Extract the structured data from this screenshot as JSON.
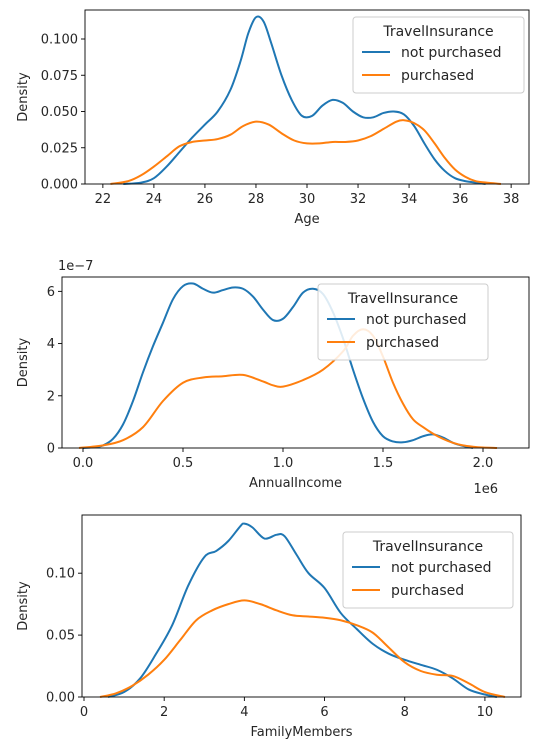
{
  "colors": {
    "not_purchased": "#1f77b4",
    "purchased": "#ff7f0e"
  },
  "chart_data": [
    {
      "type": "line",
      "title": "",
      "xlabel": "Age",
      "ylabel": "Density",
      "xlim": [
        21.3,
        38.7
      ],
      "ylim": [
        0,
        0.12
      ],
      "xticks": [
        22,
        24,
        26,
        28,
        30,
        32,
        34,
        36,
        38
      ],
      "xtick_labels": [
        "22",
        "24",
        "26",
        "28",
        "30",
        "32",
        "34",
        "36",
        "38"
      ],
      "yticks": [
        0,
        0.025,
        0.05,
        0.075,
        0.1
      ],
      "ytick_labels": [
        "0.000",
        "0.025",
        "0.050",
        "0.075",
        "0.100"
      ],
      "offset_label": "",
      "legend": {
        "title": "TravelInsurance",
        "placement": "top-right"
      },
      "series": [
        {
          "name": "not purchased",
          "color_key": "not_purchased",
          "x": [
            22.8,
            23.5,
            24.0,
            24.5,
            25.0,
            25.5,
            26.0,
            26.5,
            27.0,
            27.4,
            27.7,
            28.0,
            28.3,
            28.6,
            29.0,
            29.4,
            29.8,
            30.2,
            30.6,
            31.0,
            31.4,
            31.8,
            32.2,
            32.6,
            33.0,
            33.4,
            33.8,
            34.2,
            34.6,
            35.0,
            35.4,
            35.8,
            36.2,
            36.6,
            37.0
          ],
          "y": [
            0.0,
            0.001,
            0.004,
            0.012,
            0.022,
            0.032,
            0.041,
            0.05,
            0.065,
            0.085,
            0.104,
            0.115,
            0.112,
            0.097,
            0.075,
            0.058,
            0.047,
            0.047,
            0.054,
            0.058,
            0.056,
            0.05,
            0.046,
            0.046,
            0.049,
            0.05,
            0.048,
            0.04,
            0.028,
            0.017,
            0.009,
            0.004,
            0.002,
            0.001,
            0.0
          ]
        },
        {
          "name": "purchased",
          "color_key": "purchased",
          "x": [
            22.3,
            23.0,
            23.5,
            24.0,
            24.5,
            25.0,
            25.5,
            26.0,
            26.5,
            27.0,
            27.5,
            28.0,
            28.5,
            29.0,
            29.5,
            30.0,
            30.5,
            31.0,
            31.5,
            32.0,
            32.5,
            33.0,
            33.5,
            33.8,
            34.2,
            34.6,
            35.0,
            35.4,
            35.8,
            36.2,
            36.6,
            37.0,
            37.6
          ],
          "y": [
            0.0,
            0.002,
            0.006,
            0.012,
            0.019,
            0.026,
            0.029,
            0.03,
            0.031,
            0.034,
            0.04,
            0.043,
            0.041,
            0.035,
            0.03,
            0.028,
            0.028,
            0.029,
            0.029,
            0.03,
            0.033,
            0.038,
            0.043,
            0.044,
            0.042,
            0.037,
            0.028,
            0.018,
            0.01,
            0.005,
            0.002,
            0.001,
            0.0
          ]
        }
      ]
    },
    {
      "type": "line",
      "title": "",
      "xlabel": "AnnualIncome",
      "ylabel": "Density",
      "xlim": [
        -0.105,
        2.23
      ],
      "ylim": [
        0,
        6.55
      ],
      "xticks": [
        0.0,
        0.5,
        1.0,
        1.5,
        2.0
      ],
      "xtick_labels": [
        "0.0",
        "0.5",
        "1.0",
        "1.5",
        "2.0"
      ],
      "yticks": [
        0,
        2,
        4,
        6
      ],
      "ytick_labels": [
        "0",
        "2",
        "4",
        "6"
      ],
      "offset_label": "1e−7",
      "x_offset_label": "1e6",
      "legend": {
        "title": "TravelInsurance",
        "placement": "top-right"
      },
      "series": [
        {
          "name": "not purchased",
          "color_key": "not_purchased",
          "x": [
            0.0,
            0.05,
            0.1,
            0.15,
            0.2,
            0.25,
            0.3,
            0.35,
            0.4,
            0.45,
            0.5,
            0.55,
            0.6,
            0.65,
            0.7,
            0.75,
            0.8,
            0.85,
            0.9,
            0.95,
            1.0,
            1.05,
            1.1,
            1.15,
            1.2,
            1.25,
            1.3,
            1.35,
            1.4,
            1.45,
            1.5,
            1.55,
            1.6,
            1.65,
            1.7,
            1.75,
            1.8,
            1.85,
            1.9,
            1.95
          ],
          "y": [
            0.0,
            0.03,
            0.1,
            0.35,
            0.9,
            1.8,
            2.9,
            3.9,
            4.8,
            5.7,
            6.2,
            6.3,
            6.1,
            5.95,
            6.05,
            6.15,
            6.1,
            5.8,
            5.3,
            4.9,
            4.95,
            5.4,
            5.95,
            6.1,
            5.9,
            5.2,
            4.2,
            3.0,
            1.9,
            1.0,
            0.45,
            0.25,
            0.22,
            0.3,
            0.45,
            0.52,
            0.4,
            0.2,
            0.08,
            0.0
          ]
        },
        {
          "name": "purchased",
          "color_key": "purchased",
          "x": [
            -0.02,
            0.1,
            0.2,
            0.3,
            0.4,
            0.5,
            0.6,
            0.7,
            0.8,
            0.9,
            0.95,
            1.0,
            1.1,
            1.2,
            1.3,
            1.35,
            1.4,
            1.45,
            1.5,
            1.55,
            1.6,
            1.65,
            1.7,
            1.75,
            1.8,
            1.85,
            1.9,
            1.95,
            2.0,
            2.07
          ],
          "y": [
            0.0,
            0.1,
            0.3,
            0.8,
            1.8,
            2.5,
            2.7,
            2.75,
            2.8,
            2.55,
            2.4,
            2.35,
            2.6,
            3.0,
            3.7,
            4.3,
            4.55,
            4.3,
            3.5,
            2.5,
            1.7,
            1.1,
            0.8,
            0.55,
            0.35,
            0.2,
            0.1,
            0.05,
            0.02,
            0.0
          ]
        }
      ]
    },
    {
      "type": "line",
      "title": "",
      "xlabel": "FamilyMembers",
      "ylabel": "Density",
      "xlim": [
        -0.05,
        10.9
      ],
      "ylim": [
        0,
        0.147
      ],
      "xticks": [
        0,
        2,
        4,
        6,
        8,
        10
      ],
      "xtick_labels": [
        "0",
        "2",
        "4",
        "6",
        "8",
        "10"
      ],
      "yticks": [
        0,
        0.05,
        0.1
      ],
      "ytick_labels": [
        "0.00",
        "0.05",
        "0.10"
      ],
      "offset_label": "",
      "legend": {
        "title": "TravelInsurance",
        "placement": "top-right"
      },
      "series": [
        {
          "name": "not purchased",
          "color_key": "not_purchased",
          "x": [
            0.6,
            1.0,
            1.4,
            1.8,
            2.2,
            2.6,
            3.0,
            3.3,
            3.6,
            3.9,
            4.0,
            4.2,
            4.5,
            4.8,
            5.0,
            5.3,
            5.6,
            6.0,
            6.4,
            6.8,
            7.2,
            7.6,
            8.0,
            8.4,
            8.8,
            9.2,
            9.6,
            10.0,
            10.3
          ],
          "y": [
            0.0,
            0.004,
            0.015,
            0.035,
            0.058,
            0.09,
            0.113,
            0.118,
            0.126,
            0.138,
            0.14,
            0.137,
            0.128,
            0.131,
            0.13,
            0.115,
            0.1,
            0.088,
            0.068,
            0.055,
            0.043,
            0.035,
            0.03,
            0.026,
            0.022,
            0.015,
            0.006,
            0.002,
            0.0
          ]
        },
        {
          "name": "purchased",
          "color_key": "purchased",
          "x": [
            0.4,
            0.8,
            1.2,
            1.6,
            2.0,
            2.4,
            2.8,
            3.2,
            3.6,
            4.0,
            4.4,
            4.8,
            5.2,
            5.6,
            6.0,
            6.4,
            6.8,
            7.2,
            7.6,
            8.0,
            8.4,
            8.8,
            9.2,
            9.6,
            10.0,
            10.5
          ],
          "y": [
            0.0,
            0.003,
            0.009,
            0.018,
            0.03,
            0.046,
            0.062,
            0.07,
            0.075,
            0.078,
            0.075,
            0.07,
            0.066,
            0.065,
            0.064,
            0.062,
            0.058,
            0.052,
            0.04,
            0.028,
            0.021,
            0.018,
            0.017,
            0.011,
            0.004,
            0.0
          ]
        }
      ]
    }
  ]
}
